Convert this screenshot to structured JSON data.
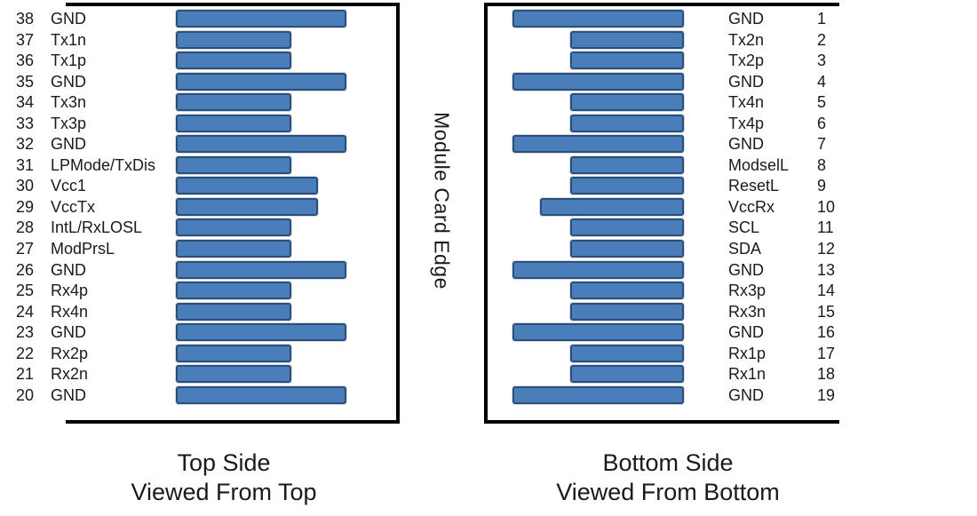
{
  "center_label": "Module Card Edge",
  "colors": {
    "bar_fill": "#4A7EBB",
    "bar_border": "#2C4E77",
    "box_border": "#000000",
    "text": "#1A1A1A"
  },
  "left_panel": {
    "caption_line1": "Top Side",
    "caption_line2": "Viewed From Top",
    "pins": [
      {
        "number": "38",
        "name": "GND",
        "type": "gnd"
      },
      {
        "number": "37",
        "name": "Tx1n",
        "type": "signal"
      },
      {
        "number": "36",
        "name": "Tx1p",
        "type": "signal"
      },
      {
        "number": "35",
        "name": "GND",
        "type": "gnd"
      },
      {
        "number": "34",
        "name": "Tx3n",
        "type": "signal"
      },
      {
        "number": "33",
        "name": "Tx3p",
        "type": "signal"
      },
      {
        "number": "32",
        "name": "GND",
        "type": "gnd"
      },
      {
        "number": "31",
        "name": "LPMode/TxDis",
        "type": "signal"
      },
      {
        "number": "30",
        "name": "Vcc1",
        "type": "power"
      },
      {
        "number": "29",
        "name": "VccTx",
        "type": "power"
      },
      {
        "number": "28",
        "name": "IntL/RxLOSL",
        "type": "signal"
      },
      {
        "number": "27",
        "name": "ModPrsL",
        "type": "signal"
      },
      {
        "number": "26",
        "name": "GND",
        "type": "gnd"
      },
      {
        "number": "25",
        "name": "Rx4p",
        "type": "signal"
      },
      {
        "number": "24",
        "name": "Rx4n",
        "type": "signal"
      },
      {
        "number": "23",
        "name": "GND",
        "type": "gnd"
      },
      {
        "number": "22",
        "name": "Rx2p",
        "type": "signal"
      },
      {
        "number": "21",
        "name": "Rx2n",
        "type": "signal"
      },
      {
        "number": "20",
        "name": "GND",
        "type": "gnd"
      }
    ]
  },
  "right_panel": {
    "caption_line1": "Bottom Side",
    "caption_line2": "Viewed From Bottom",
    "pins": [
      {
        "number": "1",
        "name": "GND",
        "type": "gnd"
      },
      {
        "number": "2",
        "name": "Tx2n",
        "type": "signal"
      },
      {
        "number": "3",
        "name": "Tx2p",
        "type": "signal"
      },
      {
        "number": "4",
        "name": "GND",
        "type": "gnd"
      },
      {
        "number": "5",
        "name": "Tx4n",
        "type": "signal"
      },
      {
        "number": "6",
        "name": "Tx4p",
        "type": "signal"
      },
      {
        "number": "7",
        "name": "GND",
        "type": "gnd"
      },
      {
        "number": "8",
        "name": "ModselL",
        "type": "signal"
      },
      {
        "number": "9",
        "name": "ResetL",
        "type": "signal"
      },
      {
        "number": "10",
        "name": "VccRx",
        "type": "power"
      },
      {
        "number": "11",
        "name": "SCL",
        "type": "signal"
      },
      {
        "number": "12",
        "name": "SDA",
        "type": "signal"
      },
      {
        "number": "13",
        "name": "GND",
        "type": "gnd"
      },
      {
        "number": "14",
        "name": "Rx3p",
        "type": "signal"
      },
      {
        "number": "15",
        "name": "Rx3n",
        "type": "signal"
      },
      {
        "number": "16",
        "name": "GND",
        "type": "gnd"
      },
      {
        "number": "17",
        "name": "Rx1p",
        "type": "signal"
      },
      {
        "number": "18",
        "name": "Rx1n",
        "type": "signal"
      },
      {
        "number": "19",
        "name": "GND",
        "type": "gnd"
      }
    ]
  }
}
